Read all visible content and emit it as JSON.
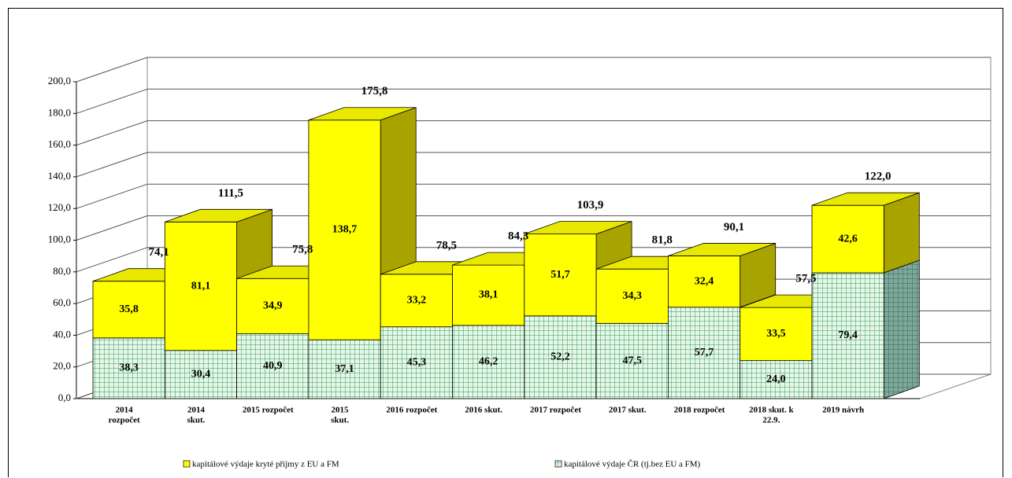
{
  "chart_data": {
    "type": "stacked_bar_3d",
    "categories": [
      [
        "2014",
        "rozpočet"
      ],
      [
        "2014",
        "skut."
      ],
      [
        "2015 rozpočet"
      ],
      [
        "2015",
        "skut."
      ],
      [
        "2016 rozpočet"
      ],
      [
        "2016 skut."
      ],
      [
        "2017 rozpočet"
      ],
      [
        "2017 skut."
      ],
      [
        "2018 rozpočet"
      ],
      [
        "2018 skut. k",
        "22.9."
      ],
      [
        "2019 návrh"
      ]
    ],
    "series": [
      {
        "name": "kapitálové výdaje ČR (tj.bez EU a FM)",
        "color": "#339966",
        "values": [
          38.3,
          30.4,
          40.9,
          37.1,
          45.3,
          46.2,
          52.2,
          47.5,
          57.7,
          24.0,
          79.4
        ],
        "value_labels": [
          "38,3",
          "30,4",
          "40,9",
          "37,1",
          "45,3",
          "46,2",
          "52,2",
          "47,5",
          "57,7",
          "24,0",
          "79,4"
        ]
      },
      {
        "name": "kapitálové výdaje kryté příjmy z EU a FM",
        "color": "#ffff00",
        "values": [
          35.8,
          81.1,
          34.9,
          138.7,
          33.2,
          38.1,
          51.7,
          34.3,
          32.4,
          33.5,
          42.6
        ],
        "value_labels": [
          "35,8",
          "81,1",
          "34,9",
          "138,7",
          "33,2",
          "38,1",
          "51,7",
          "34,3",
          "32,4",
          "33,5",
          "42,6"
        ]
      }
    ],
    "totals": [
      74.1,
      111.5,
      75.8,
      175.8,
      78.5,
      84.3,
      103.9,
      81.8,
      90.1,
      57.5,
      122.0
    ],
    "totals_labels": [
      "74,1",
      "111,5",
      "75,8",
      "175,8",
      "78,5",
      "84,3",
      "103,9",
      "81,8",
      "90,1",
      "57,5",
      "122,0"
    ],
    "ylim": [
      0,
      200
    ],
    "yticks": [
      {
        "value": 0,
        "label": "0,0"
      },
      {
        "value": 20,
        "label": "20,0"
      },
      {
        "value": 40,
        "label": "40,0"
      },
      {
        "value": 60,
        "label": "60,0"
      },
      {
        "value": 80,
        "label": "80,0"
      },
      {
        "value": 100,
        "label": "100,0"
      },
      {
        "value": 120,
        "label": "120,0"
      },
      {
        "value": 140,
        "label": "140,0"
      },
      {
        "value": 160,
        "label": "160,0"
      },
      {
        "value": 180,
        "label": "180,0"
      },
      {
        "value": 200,
        "label": "200,0"
      }
    ],
    "grid": true,
    "legend": "bottom"
  }
}
